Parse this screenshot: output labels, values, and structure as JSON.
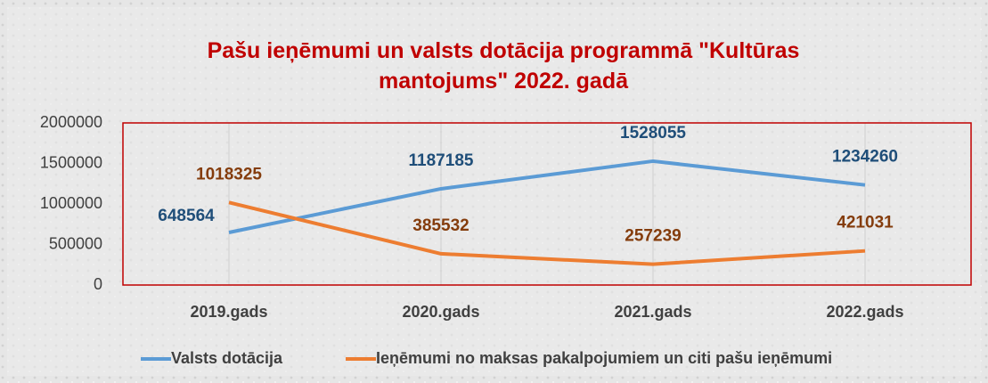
{
  "chart_data": {
    "type": "line",
    "title": "Pašu ieņēmumi un valsts dotācija programmā \"Kultūras mantojums\" 2022. gadā",
    "categories": [
      "2019.gads",
      "2020.gads",
      "2021.gads",
      "2022.gads"
    ],
    "series": [
      {
        "name": "Valsts dotācija",
        "color": "#5b9bd5",
        "label_color": "#1f4e79",
        "values": [
          648564,
          1187185,
          1528055,
          1234260
        ]
      },
      {
        "name": "Ieņēmumi no maksas pakalpojumiem un citi pašu ieņēmumi",
        "color": "#ed7d31",
        "label_color": "#843c0c",
        "values": [
          1018325,
          385532,
          257239,
          421031
        ]
      }
    ],
    "ylim": [
      0,
      2000000
    ],
    "yticks": [
      0,
      500000,
      1000000,
      1500000,
      2000000
    ],
    "grid": true,
    "legend": "bottom"
  }
}
